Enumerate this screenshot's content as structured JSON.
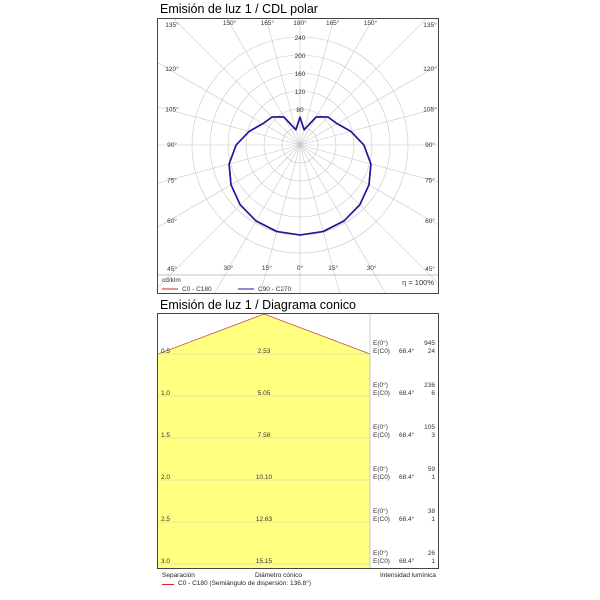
{
  "polar_title": "Emisión de luz 1 / CDL polar",
  "cone_title": "Emisión de luz 1 / Diagrama conico",
  "polar": {
    "unit_label": "cd/klm",
    "efficiency": "η = 100%",
    "legend": [
      {
        "label": "C0 - C180",
        "color": "#d62020"
      },
      {
        "label": "C90 - C270",
        "color": "#1a1aa8"
      }
    ],
    "radial_ticks": [
      "80",
      "120",
      "160",
      "200",
      "240"
    ],
    "angle_labels_left": [
      "135°",
      "120°",
      "105°",
      "90°",
      "75°",
      "60°",
      "45°"
    ],
    "angle_labels_right": [
      "135°",
      "120°",
      "105°",
      "90°",
      "75°",
      "60°",
      "45°"
    ],
    "top_labels": [
      "150°",
      "165°",
      "180°",
      "165°",
      "150°"
    ],
    "bottom_labels": [
      "30°",
      "15°",
      "0°",
      "15°",
      "30°"
    ]
  },
  "chart_data": [
    {
      "type": "line",
      "title": "Emisión de luz 1 / CDL polar",
      "unit": "cd/klm",
      "rmax": 240,
      "series": [
        {
          "name": "C0 - C180",
          "angles": [
            0,
            15,
            30,
            45,
            60,
            75,
            90,
            105,
            120,
            135,
            150,
            165,
            180
          ],
          "values": [
            200,
            199,
            195,
            188,
            177,
            163,
            142,
            117,
            95,
            88,
            72,
            35,
            62
          ]
        },
        {
          "name": "C90 - C270",
          "angles": [
            0,
            15,
            30,
            45,
            60,
            75,
            90,
            105,
            120,
            135,
            150,
            165,
            180
          ],
          "values": [
            200,
            199,
            195,
            188,
            177,
            163,
            142,
            117,
            95,
            88,
            72,
            35,
            62
          ]
        }
      ]
    },
    {
      "type": "table",
      "title": "Emisión de luz 1 / Diagrama conico",
      "columns": [
        "Separación",
        "Diámetro cónico",
        "Intensidad lumínica"
      ],
      "rows": [
        {
          "sep": "0.5",
          "diam": "2.53",
          "e0": "945",
          "ec0": "24",
          "angle": "68.4°"
        },
        {
          "sep": "1.0",
          "diam": "5.05",
          "e0": "236",
          "ec0": "6",
          "angle": "68.4°"
        },
        {
          "sep": "1.5",
          "diam": "7.58",
          "e0": "105",
          "ec0": "3",
          "angle": "68.4°"
        },
        {
          "sep": "2.0",
          "diam": "10.10",
          "e0": "59",
          "ec0": "1",
          "angle": "68.4°"
        },
        {
          "sep": "2.5",
          "diam": "12.63",
          "e0": "38",
          "ec0": "1",
          "angle": "68.4°"
        },
        {
          "sep": "3.0",
          "diam": "15.15",
          "e0": "26",
          "ec0": "1",
          "angle": "68.4°"
        }
      ],
      "e0_label": "E(0°)",
      "ec0_label": "E(C0)"
    }
  ],
  "cone_footer": {
    "col1": "Separación",
    "col2": "Diámetro cónico",
    "col3": "Intensidad lumínica",
    "legend": "C0 - C180 (Semiángulo de dispersión: 136.8°)",
    "legend_color": "#d62020"
  },
  "colors": {
    "cone_fill": "#ffff80",
    "cone_outline": "#c05050",
    "grid": "#c8c8c8"
  }
}
